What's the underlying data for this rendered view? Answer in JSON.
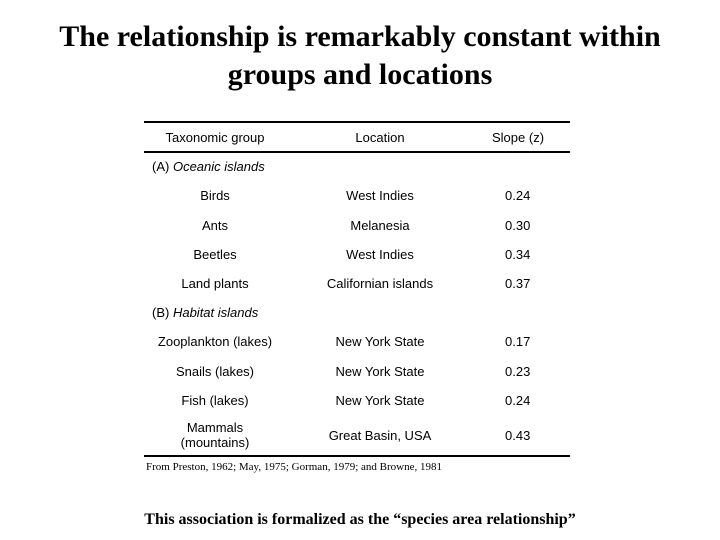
{
  "slide": {
    "title_line1": "The relationship is remarkably constant within",
    "title_line2": "groups and locations",
    "footer": "This association is formalized as the “species area relationship”",
    "source": "From Preston, 1962; May, 1975; Gorman, 1979; and Browne, 1981"
  },
  "table": {
    "headers": [
      "Taxonomic group",
      "Location",
      "Slope (z)"
    ],
    "sections": [
      {
        "prefix": "(A) ",
        "label": "Oceanic islands",
        "rows": [
          [
            "Birds",
            "West Indies",
            "0.24"
          ],
          [
            "Ants",
            "Melanesia",
            "0.30"
          ],
          [
            "Beetles",
            "West Indies",
            "0.34"
          ],
          [
            "Land plants",
            "Californian islands",
            "0.37"
          ]
        ]
      },
      {
        "prefix": "(B) ",
        "label": "Habitat islands",
        "rows": [
          [
            "Zooplankton (lakes)",
            "New York State",
            "0.17"
          ],
          [
            "Snails (lakes)",
            "New York State",
            "0.23"
          ],
          [
            "Fish (lakes)",
            "New York State",
            "0.24"
          ],
          [
            "Mammals (mountains)",
            "Great Basin, USA",
            "0.43"
          ]
        ]
      }
    ]
  }
}
